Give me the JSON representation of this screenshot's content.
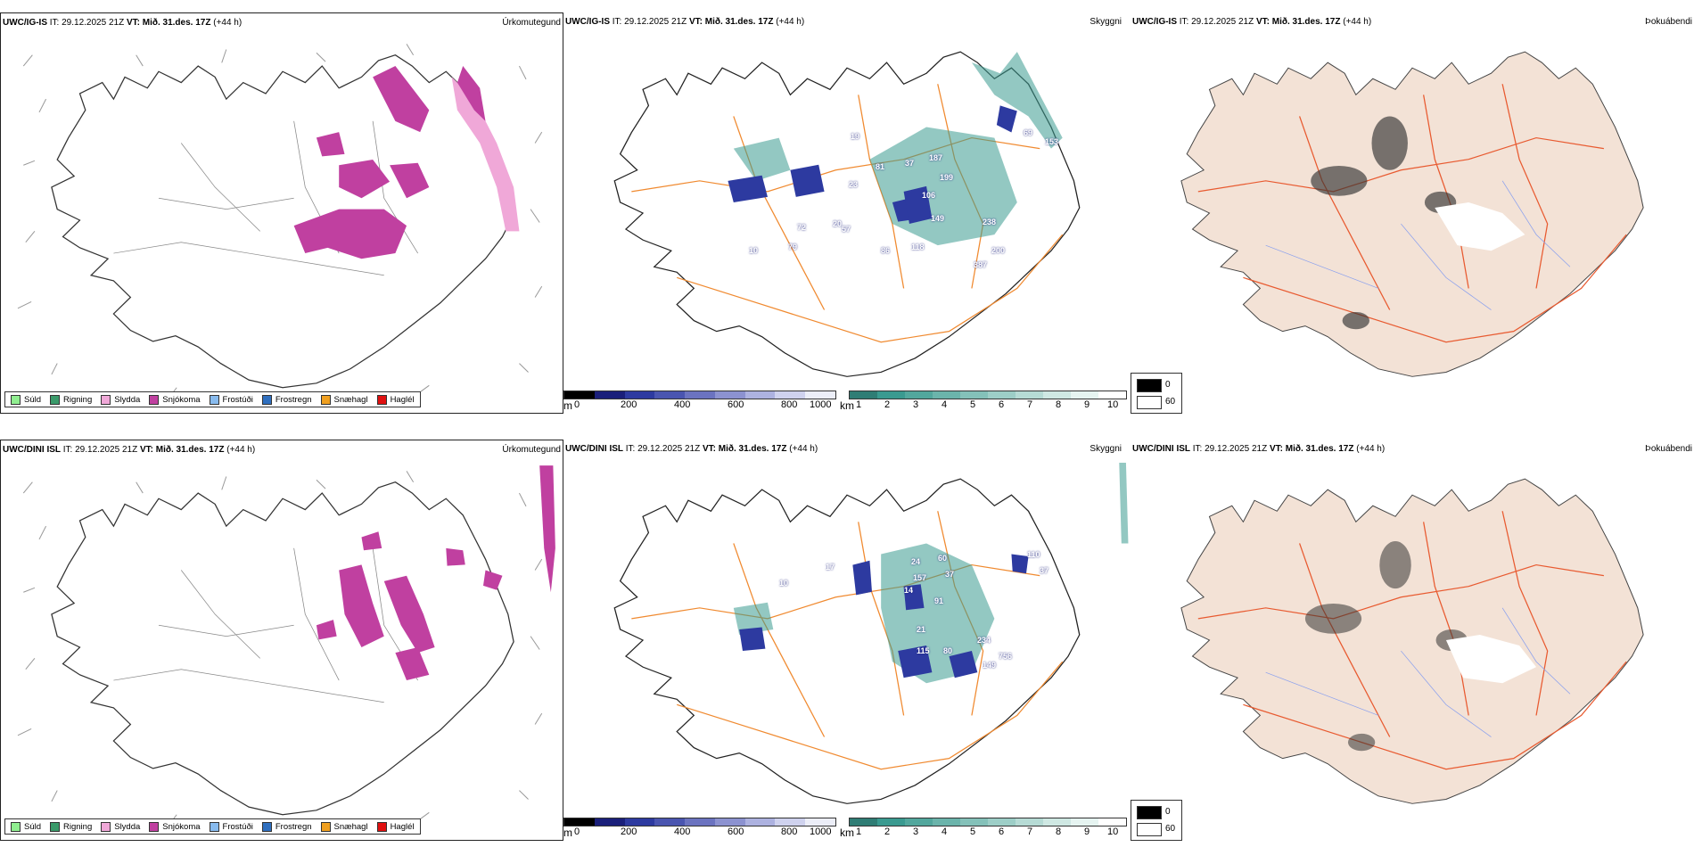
{
  "rows": [
    {
      "precip": {
        "model": "UWC/IG-IS",
        "init": "IT: 29.12.2025 21Z",
        "valid": "VT: Mið. 31.des. 17Z",
        "lead": "(+44 h)",
        "title": "Úrkomutegund"
      },
      "cloud": {
        "model": "UWC/IG-IS",
        "init": "IT: 29.12.2025 21Z",
        "valid": "VT: Mið. 31.des. 17Z",
        "lead": "(+44 h)",
        "title": "Skyggni",
        "labels": [
          "72",
          "79",
          "57",
          "10",
          "86",
          "118",
          "238",
          "200",
          "387",
          "149",
          "106",
          "199",
          "187",
          "37",
          "69",
          "153",
          "19",
          "81",
          "20",
          "23"
        ]
      },
      "fog": {
        "model": "UWC/IG-IS",
        "init": "IT: 29.12.2025 21Z",
        "valid": "VT: Mið. 31.des. 17Z",
        "lead": "(+44 h)",
        "title": "Þokuábendi"
      }
    },
    {
      "precip": {
        "model": "UWC/DINI ISL",
        "init": "IT: 29.12.2025 21Z",
        "valid": "VT: Mið. 31.des. 17Z",
        "lead": "(+44 h)",
        "title": "Úrkomutegund"
      },
      "cloud": {
        "model": "UWC/DINI ISL",
        "init": "IT: 29.12.2025 21Z",
        "valid": "VT: Mið. 31.des. 17Z",
        "lead": "(+44 h)",
        "title": "Skyggni",
        "labels": [
          "17",
          "10",
          "14",
          "24",
          "157",
          "60",
          "37",
          "91",
          "21",
          "115",
          "80",
          "234",
          "756",
          "149",
          "110",
          "37"
        ]
      },
      "fog": {
        "model": "UWC/DINI ISL",
        "init": "IT: 29.12.2025 21Z",
        "valid": "VT: Mið. 31.des. 17Z",
        "lead": "(+44 h)",
        "title": "Þokuábendi"
      }
    }
  ],
  "precip_legend": [
    {
      "label": "Súld",
      "color": "#90ee90"
    },
    {
      "label": "Rigning",
      "color": "#3a9a6a"
    },
    {
      "label": "Slydda",
      "color": "#f0a8d8"
    },
    {
      "label": "Snjókoma",
      "color": "#c040a0"
    },
    {
      "label": "Frostúði",
      "color": "#88bbee"
    },
    {
      "label": "Frostregn",
      "color": "#2f6fbf"
    },
    {
      "label": "Snæhagl",
      "color": "#f0a020"
    },
    {
      "label": "Haglél",
      "color": "#e01010"
    }
  ],
  "height_scale": {
    "unit": "m",
    "ticks": [
      "0",
      "200",
      "400",
      "600",
      "800",
      "1000"
    ]
  },
  "vis_scale": {
    "unit": "km",
    "ticks": [
      "1",
      "2",
      "3",
      "4",
      "5",
      "6",
      "7",
      "8",
      "9",
      "10"
    ]
  },
  "fog_legend": {
    "low": "0",
    "high": "60"
  },
  "colors": {
    "snow": "#c040a0",
    "sleet": "#f0a8d8",
    "ceiling": "#2d3aa0",
    "vis": "#3a9a90",
    "roads": "#f08a30",
    "land_fog": "#f3e2d6",
    "roads_fog": "#e85a30"
  }
}
